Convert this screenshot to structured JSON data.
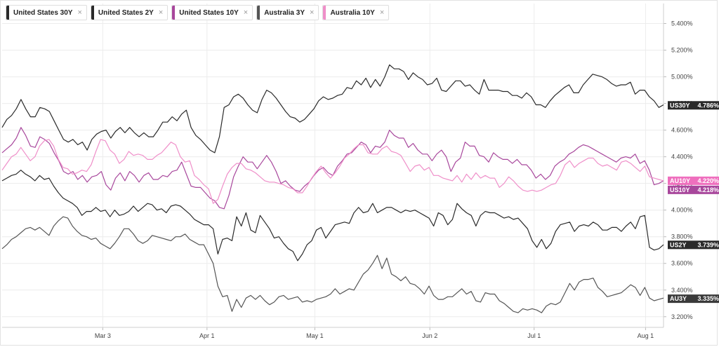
{
  "legend": [
    {
      "label": "United States 30Y",
      "color": "#2a2a2a"
    },
    {
      "label": "United States 2Y",
      "color": "#2a2a2a"
    },
    {
      "label": "United States 10Y",
      "color": "#a8479c"
    },
    {
      "label": "Australia 3Y",
      "color": "#555555"
    },
    {
      "label": "Australia 10Y",
      "color": "#ef8fc9"
    }
  ],
  "close_glyph": "×",
  "chart_data": {
    "type": "line",
    "x_ticks": [
      "Mar 3",
      "Apr 1",
      "May 1",
      "Jun 2",
      "Jul 1",
      "Aug 1"
    ],
    "x_range": [
      "2025-02-03",
      "2025-08-06"
    ],
    "y_ticks": [
      "3.200%",
      "3.400%",
      "3.600%",
      "3.800%",
      "4.000%",
      "4.200%",
      "4.400%",
      "4.600%",
      "4.800%",
      "5.000%",
      "5.200%",
      "5.400%"
    ],
    "ylim": [
      3.12,
      5.55
    ],
    "grid": true,
    "series": [
      {
        "name": "United States 30Y",
        "flag": "US30Y",
        "last": "4.786%",
        "color": "#2a2a2a",
        "flag_color": "#2a2a2a",
        "values": [
          4.62,
          4.68,
          4.71,
          4.76,
          4.83,
          4.76,
          4.7,
          4.7,
          4.77,
          4.76,
          4.74,
          4.67,
          4.6,
          4.53,
          4.51,
          4.53,
          4.49,
          4.51,
          4.45,
          4.53,
          4.57,
          4.59,
          4.6,
          4.54,
          4.59,
          4.62,
          4.58,
          4.62,
          4.58,
          4.55,
          4.58,
          4.55,
          4.55,
          4.6,
          4.66,
          4.66,
          4.7,
          4.67,
          4.72,
          4.75,
          4.62,
          4.56,
          4.53,
          4.49,
          4.45,
          4.43,
          4.55,
          4.77,
          4.79,
          4.85,
          4.87,
          4.84,
          4.79,
          4.75,
          4.73,
          4.83,
          4.9,
          4.88,
          4.84,
          4.79,
          4.74,
          4.7,
          4.69,
          4.66,
          4.68,
          4.72,
          4.76,
          4.82,
          4.85,
          4.83,
          4.84,
          4.86,
          4.87,
          4.92,
          4.91,
          4.97,
          4.94,
          4.99,
          4.92,
          4.98,
          4.93,
          5.0,
          5.09,
          5.06,
          5.06,
          5.04,
          4.98,
          5.03,
          5.0,
          4.98,
          4.94,
          4.95,
          4.99,
          4.9,
          4.89,
          4.93,
          4.97,
          4.97,
          4.93,
          4.94,
          4.9,
          4.87,
          4.98,
          4.9,
          4.9,
          4.9,
          4.89,
          4.89,
          4.86,
          4.86,
          4.84,
          4.88,
          4.85,
          4.79,
          4.79,
          4.77,
          4.82,
          4.86,
          4.89,
          4.92,
          4.94,
          4.88,
          4.88,
          4.94,
          4.98,
          5.02,
          5.01,
          5.0,
          4.98,
          4.95,
          4.93,
          4.94,
          4.94,
          4.96,
          4.87,
          4.9,
          4.9,
          4.85,
          4.82,
          4.77,
          4.79
        ]
      },
      {
        "name": "United States 10Y",
        "flag": "US10Y",
        "last": "4.218%",
        "color": "#a8479c",
        "flag_color": "#a8479c",
        "values": [
          4.43,
          4.46,
          4.49,
          4.54,
          4.62,
          4.56,
          4.48,
          4.47,
          4.55,
          4.53,
          4.5,
          4.43,
          4.37,
          4.29,
          4.27,
          4.29,
          4.23,
          4.26,
          4.21,
          4.25,
          4.26,
          4.29,
          4.19,
          4.15,
          4.24,
          4.28,
          4.22,
          4.29,
          4.26,
          4.21,
          4.26,
          4.28,
          4.23,
          4.23,
          4.26,
          4.25,
          4.29,
          4.3,
          4.36,
          4.27,
          4.18,
          4.17,
          4.17,
          4.13,
          4.09,
          4.07,
          4.02,
          4.01,
          4.11,
          4.25,
          4.33,
          4.4,
          4.36,
          4.36,
          4.31,
          4.36,
          4.41,
          4.36,
          4.29,
          4.2,
          4.22,
          4.18,
          4.15,
          4.14,
          4.18,
          4.21,
          4.26,
          4.3,
          4.32,
          4.28,
          4.26,
          4.33,
          4.37,
          4.42,
          4.43,
          4.47,
          4.51,
          4.49,
          4.43,
          4.48,
          4.47,
          4.51,
          4.6,
          4.56,
          4.54,
          4.54,
          4.47,
          4.5,
          4.45,
          4.42,
          4.42,
          4.37,
          4.42,
          4.45,
          4.4,
          4.29,
          4.36,
          4.39,
          4.51,
          4.48,
          4.48,
          4.41,
          4.4,
          4.36,
          4.43,
          4.4,
          4.38,
          4.38,
          4.35,
          4.38,
          4.34,
          4.34,
          4.3,
          4.24,
          4.27,
          4.23,
          4.26,
          4.33,
          4.36,
          4.38,
          4.42,
          4.44,
          4.47,
          4.49,
          4.48,
          4.46,
          4.44,
          4.42,
          4.4,
          4.38,
          4.36,
          4.39,
          4.4,
          4.39,
          4.42,
          4.35,
          4.37,
          4.3,
          4.19,
          4.2,
          4.22
        ]
      },
      {
        "name": "Australia 10Y",
        "flag": "AU10Y",
        "last": "4.220%",
        "color": "#ef8fc9",
        "flag_color": "#ef6fbe",
        "values": [
          4.3,
          4.35,
          4.4,
          4.42,
          4.47,
          4.42,
          4.37,
          4.4,
          4.48,
          4.52,
          4.53,
          4.48,
          4.38,
          4.32,
          4.31,
          4.27,
          4.28,
          4.3,
          4.29,
          4.34,
          4.44,
          4.53,
          4.52,
          4.45,
          4.42,
          4.35,
          4.38,
          4.44,
          4.41,
          4.42,
          4.41,
          4.38,
          4.38,
          4.41,
          4.43,
          4.47,
          4.51,
          4.49,
          4.4,
          4.36,
          4.37,
          4.26,
          4.23,
          4.19,
          4.16,
          4.05,
          4.08,
          4.18,
          4.27,
          4.32,
          4.35,
          4.35,
          4.31,
          4.3,
          4.28,
          4.25,
          4.22,
          4.21,
          4.21,
          4.2,
          4.19,
          4.17,
          4.16,
          4.13,
          4.13,
          4.18,
          4.24,
          4.29,
          4.33,
          4.28,
          4.24,
          4.28,
          4.33,
          4.39,
          4.42,
          4.46,
          4.49,
          4.49,
          4.43,
          4.42,
          4.42,
          4.46,
          4.48,
          4.44,
          4.43,
          4.41,
          4.35,
          4.29,
          4.33,
          4.34,
          4.3,
          4.32,
          4.26,
          4.26,
          4.24,
          4.23,
          4.22,
          4.26,
          4.21,
          4.27,
          4.23,
          4.28,
          4.24,
          4.26,
          4.24,
          4.24,
          4.17,
          4.2,
          4.25,
          4.22,
          4.18,
          4.15,
          4.14,
          4.15,
          4.14,
          4.15,
          4.17,
          4.19,
          4.2,
          4.26,
          4.34,
          4.37,
          4.32,
          4.35,
          4.37,
          4.39,
          4.39,
          4.35,
          4.33,
          4.34,
          4.32,
          4.3,
          4.36,
          4.37,
          4.35,
          4.32,
          4.29,
          4.33,
          4.25,
          4.24,
          4.23,
          4.22
        ]
      },
      {
        "name": "United States 2Y",
        "flag": "US2Y",
        "last": "3.739%",
        "color": "#2a2a2a",
        "flag_color": "#2a2a2a",
        "values": [
          4.22,
          4.24,
          4.26,
          4.27,
          4.3,
          4.27,
          4.25,
          4.22,
          4.26,
          4.23,
          4.24,
          4.18,
          4.13,
          4.09,
          4.07,
          4.05,
          4.02,
          3.96,
          3.99,
          3.99,
          4.02,
          3.99,
          4.0,
          3.95,
          4.0,
          3.96,
          3.97,
          3.99,
          4.03,
          3.99,
          4.02,
          4.05,
          4.04,
          4.0,
          4.01,
          3.98,
          4.03,
          4.04,
          4.03,
          4.0,
          3.97,
          3.93,
          3.91,
          3.89,
          3.89,
          3.86,
          3.67,
          3.78,
          3.79,
          3.77,
          3.95,
          3.88,
          3.98,
          3.85,
          3.83,
          3.96,
          3.91,
          3.86,
          3.79,
          3.8,
          3.75,
          3.71,
          3.69,
          3.62,
          3.67,
          3.74,
          3.77,
          3.85,
          3.87,
          3.79,
          3.84,
          3.89,
          3.9,
          3.91,
          3.9,
          3.98,
          4.02,
          3.98,
          3.99,
          4.05,
          3.98,
          4.0,
          4.02,
          4.02,
          4.0,
          3.98,
          4.0,
          3.99,
          4.0,
          3.98,
          3.96,
          3.94,
          3.88,
          3.98,
          3.96,
          3.89,
          3.93,
          4.05,
          4.01,
          3.98,
          3.96,
          3.88,
          3.96,
          3.99,
          3.98,
          3.98,
          3.96,
          3.94,
          3.95,
          3.93,
          3.94,
          3.9,
          3.86,
          3.77,
          3.72,
          3.78,
          3.71,
          3.75,
          3.84,
          3.89,
          3.9,
          3.91,
          3.84,
          3.88,
          3.89,
          3.88,
          3.91,
          3.89,
          3.85,
          3.85,
          3.87,
          3.87,
          3.84,
          3.88,
          3.91,
          3.86,
          3.95,
          3.96,
          3.72,
          3.7,
          3.71,
          3.74
        ]
      },
      {
        "name": "Australia 3Y",
        "flag": "AU3Y",
        "last": "3.335%",
        "color": "#555555",
        "flag_color": "#3a3a3a",
        "values": [
          3.71,
          3.74,
          3.78,
          3.8,
          3.83,
          3.86,
          3.87,
          3.85,
          3.87,
          3.84,
          3.81,
          3.88,
          3.92,
          3.95,
          3.94,
          3.88,
          3.84,
          3.81,
          3.8,
          3.78,
          3.79,
          3.75,
          3.73,
          3.71,
          3.75,
          3.8,
          3.86,
          3.86,
          3.82,
          3.77,
          3.75,
          3.77,
          3.81,
          3.8,
          3.79,
          3.78,
          3.77,
          3.8,
          3.8,
          3.82,
          3.78,
          3.76,
          3.74,
          3.74,
          3.67,
          3.6,
          3.43,
          3.35,
          3.36,
          3.24,
          3.33,
          3.27,
          3.34,
          3.36,
          3.33,
          3.36,
          3.32,
          3.29,
          3.31,
          3.35,
          3.36,
          3.33,
          3.34,
          3.35,
          3.31,
          3.32,
          3.31,
          3.33,
          3.34,
          3.35,
          3.37,
          3.41,
          3.37,
          3.39,
          3.41,
          3.4,
          3.46,
          3.52,
          3.55,
          3.6,
          3.66,
          3.56,
          3.64,
          3.52,
          3.5,
          3.47,
          3.5,
          3.45,
          3.44,
          3.41,
          3.37,
          3.43,
          3.36,
          3.33,
          3.33,
          3.35,
          3.35,
          3.38,
          3.41,
          3.37,
          3.39,
          3.32,
          3.31,
          3.38,
          3.37,
          3.37,
          3.32,
          3.3,
          3.27,
          3.24,
          3.23,
          3.26,
          3.25,
          3.26,
          3.25,
          3.23,
          3.28,
          3.3,
          3.29,
          3.31,
          3.38,
          3.45,
          3.4,
          3.46,
          3.48,
          3.48,
          3.49,
          3.42,
          3.39,
          3.35,
          3.36,
          3.37,
          3.38,
          3.41,
          3.44,
          3.42,
          3.36,
          3.42,
          3.34,
          3.32,
          3.33,
          3.34
        ]
      }
    ]
  }
}
